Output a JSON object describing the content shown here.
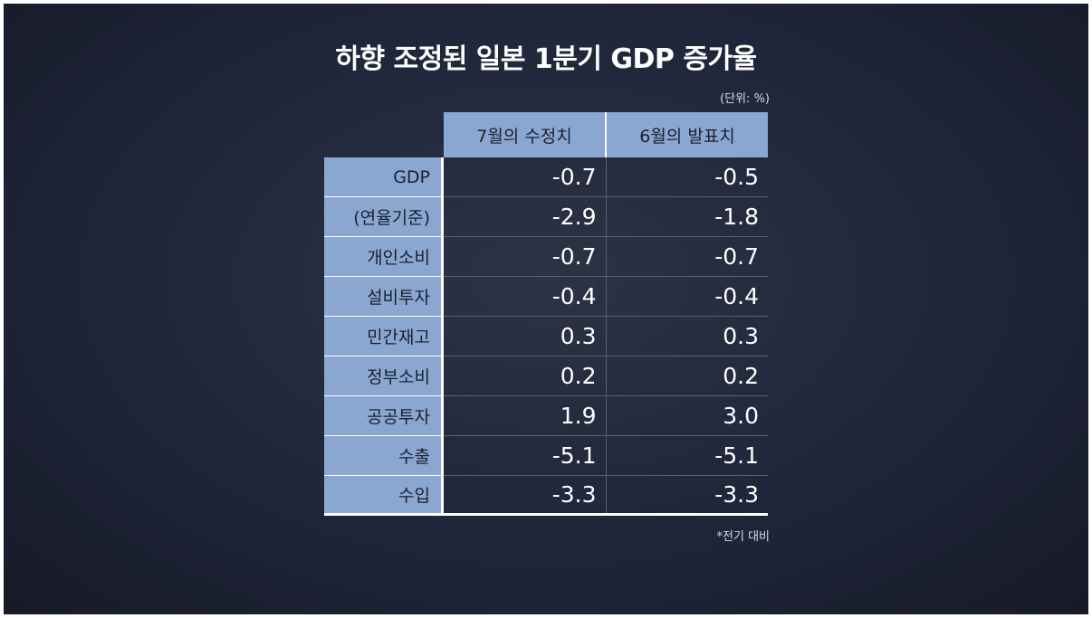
{
  "title": "하향 조정된 일본 1분기 GDP 증가율",
  "unit_note": "(단위: %)",
  "footnote": "*전기 대비",
  "colors": {
    "background": "#20263a",
    "header_fill": "#8aa7d2",
    "text": "#ffffff"
  },
  "chart_data": {
    "type": "table",
    "title": "하향 조정된 일본 1분기 GDP 증가율",
    "unit": "(단위: %)",
    "columns": [
      "7월의 수정치",
      "6월의 발표치"
    ],
    "rows": [
      {
        "label": "GDP",
        "values": [
          "-0.7",
          "-0.5"
        ]
      },
      {
        "label": "(연율기준)",
        "values": [
          "-2.9",
          "-1.8"
        ]
      },
      {
        "label": "개인소비",
        "values": [
          "-0.7",
          "-0.7"
        ]
      },
      {
        "label": "설비투자",
        "values": [
          "-0.4",
          "-0.4"
        ]
      },
      {
        "label": "민간재고",
        "values": [
          "0.3",
          "0.3"
        ]
      },
      {
        "label": "정부소비",
        "values": [
          "0.2",
          "0.2"
        ]
      },
      {
        "label": "공공투자",
        "values": [
          "1.9",
          "3.0"
        ]
      },
      {
        "label": "수출",
        "values": [
          "-5.1",
          "-5.1"
        ]
      },
      {
        "label": "수입",
        "values": [
          "-3.3",
          "-3.3"
        ]
      }
    ],
    "footnote": "*전기 대비"
  }
}
